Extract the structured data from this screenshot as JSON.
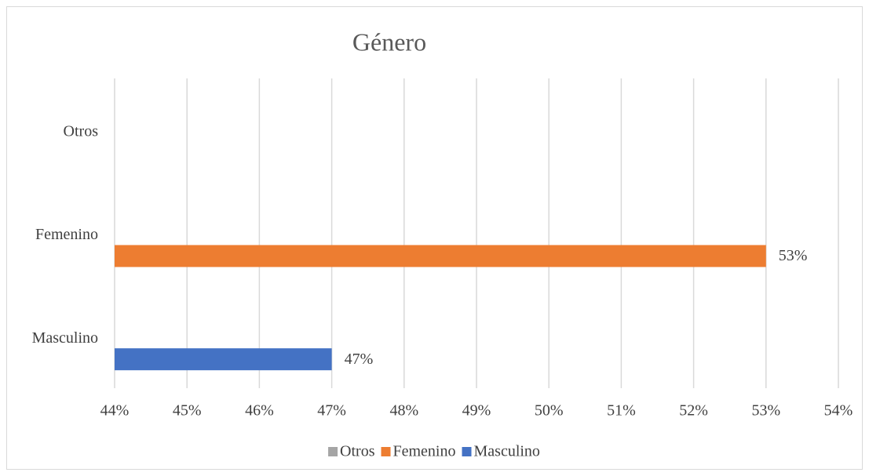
{
  "chart_data": {
    "type": "hbar",
    "title": "Género",
    "categories": [
      "Masculino",
      "Femenino",
      "Otros"
    ],
    "series": [
      {
        "name": "Otros",
        "color": "#a5a5a5",
        "values": [
          null,
          null,
          null
        ]
      },
      {
        "name": "Femenino",
        "color": "#ed7d31",
        "values": [
          null,
          53,
          null
        ],
        "value_labels": [
          null,
          "53%",
          null
        ]
      },
      {
        "name": "Masculino",
        "color": "#4472c4",
        "values": [
          47,
          null,
          null
        ],
        "value_labels": [
          "47%",
          null,
          null
        ]
      }
    ],
    "xlim": [
      44,
      54
    ],
    "xticks": [
      {
        "value": 44,
        "label": "44%"
      },
      {
        "value": 45,
        "label": "45%"
      },
      {
        "value": 46,
        "label": "46%"
      },
      {
        "value": 47,
        "label": "47%"
      },
      {
        "value": 48,
        "label": "48%"
      },
      {
        "value": 49,
        "label": "49%"
      },
      {
        "value": 50,
        "label": "50%"
      },
      {
        "value": 51,
        "label": "51%"
      },
      {
        "value": 52,
        "label": "52%"
      },
      {
        "value": 53,
        "label": "53%"
      },
      {
        "value": 54,
        "label": "54%"
      }
    ],
    "grid": true,
    "legend": "bottom"
  }
}
